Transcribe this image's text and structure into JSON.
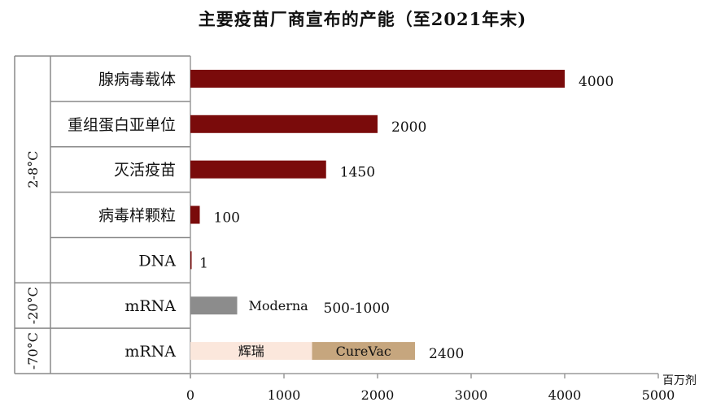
{
  "chart_data": {
    "type": "bar",
    "orientation": "horizontal",
    "title": "主要疫苗厂商宣布的产能（至2021年末)",
    "unit_label": "百万剂",
    "xlim": [
      0,
      5000
    ],
    "xticks": [
      "0",
      "1000",
      "2000",
      "3000",
      "4000",
      "5000"
    ],
    "grid": false,
    "groups": [
      {
        "label": "2-8°C",
        "rows": [
          0,
          1,
          2,
          3,
          4
        ]
      },
      {
        "label": "-20°C",
        "rows": [
          5
        ]
      },
      {
        "label": "-70°C",
        "rows": [
          6
        ]
      }
    ],
    "rows": [
      {
        "category": "腺病毒载体",
        "segments": [
          {
            "value": 4000,
            "color": "#7a0b0b",
            "label": ""
          }
        ],
        "value_label": "4000"
      },
      {
        "category": "重组蛋白亚单位",
        "segments": [
          {
            "value": 2000,
            "color": "#7a0b0b",
            "label": ""
          }
        ],
        "value_label": "2000"
      },
      {
        "category": "灭活疫苗",
        "segments": [
          {
            "value": 1450,
            "color": "#7a0b0b",
            "label": ""
          }
        ],
        "value_label": "1450"
      },
      {
        "category": "病毒样颗粒",
        "segments": [
          {
            "value": 100,
            "color": "#7a0b0b",
            "label": ""
          }
        ],
        "value_label": "100"
      },
      {
        "category": "DNA",
        "segments": [
          {
            "value": 1,
            "color": "#7a0b0b",
            "label": ""
          }
        ],
        "value_label": "1"
      },
      {
        "category": "mRNA",
        "segments": [
          {
            "value": 500,
            "color": "#8c8c8c",
            "label": "Moderna"
          }
        ],
        "value_label": "500-1000"
      },
      {
        "category": "mRNA",
        "segments": [
          {
            "value": 1300,
            "color": "#fbe7dc",
            "label": "辉瑞"
          },
          {
            "value": 1100,
            "color": "#c6a67e",
            "label": "CureVac"
          }
        ],
        "value_label": "2400"
      }
    ]
  }
}
